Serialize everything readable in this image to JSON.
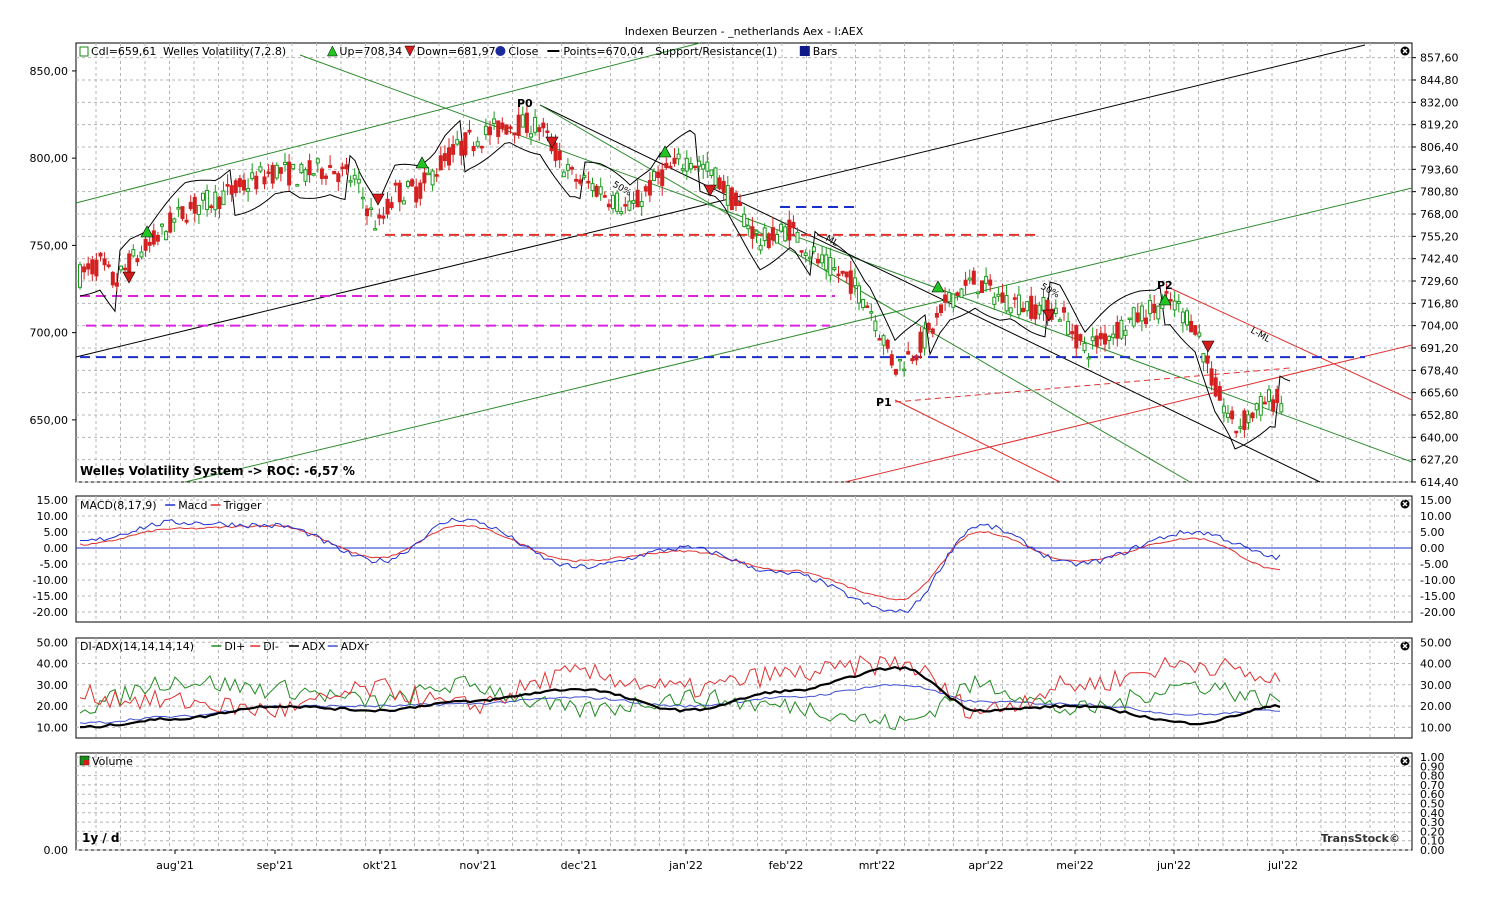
{
  "window": {
    "title": "Indexen Beurzen - _netherlands Aex - I:AEX"
  },
  "colors": {
    "grid": "#b4b4b4",
    "up": "#1a9a1a",
    "down": "#d42020",
    "black": "#000000",
    "green_line": "#2d8a2d",
    "red_line": "#e03030",
    "blue_dash": "#1a2ecc",
    "magenta_dash": "#e020e0",
    "red_dash": "#e03030",
    "macd": "#2030d0",
    "trigger": "#e03030",
    "di_plus": "#208a20",
    "di_minus": "#e03030",
    "adx": "#000000",
    "adxr": "#4050d0",
    "frame": "#000000"
  },
  "panels": {
    "price": {
      "legend": [
        {
          "icon": "candle-icon",
          "text": "Cdl=659,61"
        },
        {
          "icon": "none",
          "text": "Welles Volatility(7,2.8)"
        },
        {
          "icon": "up-triangle-icon",
          "text": "Up=708,34"
        },
        {
          "icon": "down-triangle-icon",
          "text": "Down=681,97"
        },
        {
          "icon": "circle-icon",
          "text": "Close"
        },
        {
          "icon": "line-icon",
          "text": "Points=670,04"
        },
        {
          "icon": "none",
          "text": "Support/Resistance(1)"
        },
        {
          "icon": "square-icon",
          "text": "Bars"
        }
      ],
      "footer_label": "Welles Volatility System -> ROC: -6,57 %",
      "left_ticks": [
        "850,00",
        "800,00",
        "750,00",
        "700,00",
        "650,00"
      ],
      "right_ticks": [
        "857,60",
        "844,80",
        "832,00",
        "819,20",
        "806,40",
        "793,60",
        "780,80",
        "768,00",
        "755,20",
        "742,40",
        "729,60",
        "716,80",
        "704,00",
        "691,20",
        "678,40",
        "665,60",
        "652,80",
        "640,00",
        "627,20",
        "614,40"
      ],
      "point_labels": [
        "P0",
        "P1",
        "P2"
      ],
      "fan_labels": [
        "50%",
        "ML",
        "50%",
        "L-ML"
      ]
    },
    "macd": {
      "legend": [
        {
          "text": "MACD(8,17,9)",
          "color": "#000000"
        },
        {
          "text": "Macd",
          "color": "#2030d0"
        },
        {
          "text": "Trigger",
          "color": "#e03030"
        }
      ],
      "ticks": [
        "15.00",
        "10.00",
        "5.00",
        "0.00",
        "-5.00",
        "-10.00",
        "-15.00",
        "-20.00"
      ]
    },
    "adx": {
      "legend": [
        {
          "text": "DI-ADX(14,14,14,14)",
          "color": "#000000"
        },
        {
          "text": "DI+",
          "color": "#208a20"
        },
        {
          "text": "DI-",
          "color": "#e03030"
        },
        {
          "text": "ADX",
          "color": "#000000"
        },
        {
          "text": "ADXr",
          "color": "#4050d0"
        }
      ],
      "ticks": [
        "50.00",
        "40.00",
        "30.00",
        "20.00",
        "10.00"
      ]
    },
    "volume": {
      "legend": "Volume",
      "ticks": [
        "1.00",
        "0.90",
        "0.80",
        "0.70",
        "0.60",
        "0.50",
        "0.40",
        "0.30",
        "0.20",
        "0.10",
        "0.00"
      ],
      "left_tick": "0.00",
      "period": "1y / d",
      "brand": "TransStock©"
    }
  },
  "x_axis": {
    "months": [
      "aug'21",
      "sep'21",
      "okt'21",
      "nov'21",
      "dec'21",
      "jan'22",
      "feb'22",
      "mrt'22",
      "apr'22",
      "mei'22",
      "jun'22",
      "jul'22"
    ]
  },
  "chart_data": [
    {
      "type": "line",
      "title": "Indexen Beurzen - _netherlands Aex - I:AEX",
      "series": [
        {
          "name": "Close",
          "x": [
            "2021-07-12",
            "2021-07-26",
            "2021-08-09",
            "2021-08-23",
            "2021-09-06",
            "2021-09-20",
            "2021-10-04",
            "2021-10-18",
            "2021-11-01",
            "2021-11-15",
            "2021-11-29",
            "2021-12-13",
            "2021-12-27",
            "2022-01-10",
            "2022-01-24",
            "2022-02-07",
            "2022-02-21",
            "2022-03-07",
            "2022-03-21",
            "2022-04-04",
            "2022-04-18",
            "2022-05-02",
            "2022-05-16",
            "2022-05-30",
            "2022-06-13",
            "2022-06-27",
            "2022-07-04"
          ],
          "values": [
            733,
            742,
            762,
            777,
            790,
            792,
            770,
            783,
            810,
            822,
            790,
            780,
            795,
            790,
            760,
            755,
            725,
            680,
            715,
            735,
            720,
            705,
            710,
            710,
            648,
            660,
            659.61
          ]
        }
      ],
      "y_range": [
        614.4,
        866
      ],
      "levels": {
        "blue_dash": 686,
        "red_dash": 756,
        "magenta_dash_1": 721,
        "magenta_dash_2": 704,
        "blue_dash_short": 772
      }
    },
    {
      "type": "line",
      "title": "MACD(8,17,9)",
      "series": [
        {
          "name": "Macd",
          "x": [
            "jul'21",
            "aug'21",
            "sep'21",
            "okt'21",
            "nov'21",
            "dec'21",
            "jan'22",
            "feb'22",
            "mrt'22",
            "apr'22",
            "mei'22",
            "jun'22",
            "jul'22"
          ],
          "values": [
            2,
            8,
            7,
            -4,
            9,
            -6,
            0,
            -8,
            -20,
            7,
            -5,
            5,
            -3
          ]
        },
        {
          "name": "Trigger",
          "x": [
            "jul'21",
            "aug'21",
            "sep'21",
            "okt'21",
            "nov'21",
            "dec'21",
            "jan'22",
            "feb'22",
            "mrt'22",
            "apr'22",
            "mei'22",
            "jun'22",
            "jul'22"
          ],
          "values": [
            1,
            6,
            7,
            -3,
            7,
            -4,
            -1,
            -7,
            -16,
            5,
            -4,
            3,
            -7
          ]
        }
      ],
      "y_range": [
        -20,
        15
      ]
    },
    {
      "type": "line",
      "title": "DI-ADX(14,14,14,14)",
      "series": [
        {
          "name": "DI+",
          "x": [
            "jul'21",
            "aug'21",
            "sep'21",
            "okt'21",
            "nov'21",
            "dec'21",
            "jan'22",
            "feb'22",
            "mrt'22",
            "apr'22",
            "mei'22",
            "jun'22",
            "jul'22"
          ],
          "values": [
            20,
            32,
            28,
            22,
            30,
            18,
            24,
            20,
            12,
            30,
            18,
            30,
            22
          ]
        },
        {
          "name": "DI-",
          "x": [
            "jul'21",
            "aug'21",
            "sep'21",
            "okt'21",
            "nov'21",
            "dec'21",
            "jan'22",
            "feb'22",
            "mrt'22",
            "apr'22",
            "mei'22",
            "jun'22",
            "jul'22"
          ],
          "values": [
            25,
            22,
            18,
            28,
            20,
            35,
            28,
            35,
            40,
            18,
            30,
            40,
            32
          ]
        },
        {
          "name": "ADX",
          "x": [
            "jul'21",
            "aug'21",
            "sep'21",
            "okt'21",
            "nov'21",
            "dec'21",
            "jan'22",
            "feb'22",
            "mrt'22",
            "apr'22",
            "mei'22",
            "jun'22",
            "jul'22"
          ],
          "values": [
            10,
            14,
            20,
            18,
            22,
            28,
            18,
            27,
            38,
            18,
            20,
            12,
            20
          ]
        },
        {
          "name": "ADXr",
          "x": [
            "jul'21",
            "aug'21",
            "sep'21",
            "okt'21",
            "nov'21",
            "dec'21",
            "jan'22",
            "feb'22",
            "mrt'22",
            "apr'22",
            "mei'22",
            "jun'22",
            "jul'22"
          ],
          "values": [
            12,
            15,
            20,
            20,
            21,
            24,
            20,
            24,
            30,
            22,
            21,
            16,
            18
          ]
        }
      ],
      "y_range": [
        5,
        52
      ]
    }
  ]
}
